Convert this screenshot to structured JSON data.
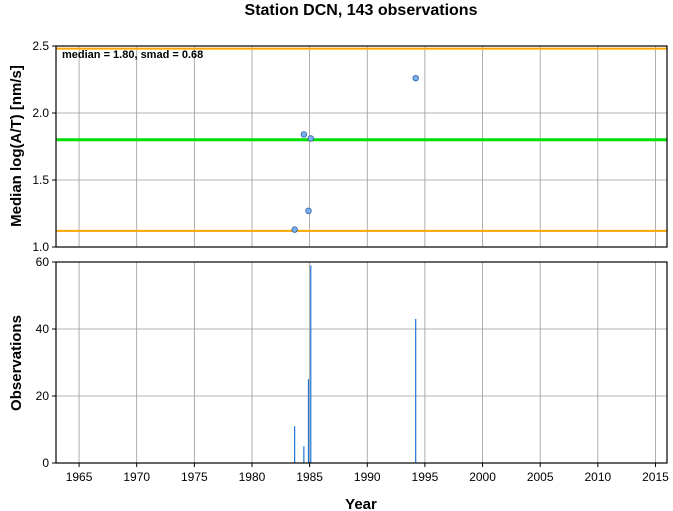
{
  "chart_data": [
    {
      "type": "scatter",
      "title": "Station DCN, 143 observations",
      "ylabel": "Median log(A/T) [nm/s]",
      "xlabel": "",
      "xlim": [
        1963,
        2016
      ],
      "ylim": [
        1.0,
        2.5
      ],
      "yticks": [
        "1.0",
        "1.5",
        "2.0",
        "2.5"
      ],
      "grid": true,
      "annotation": "median = 1.80, smad = 0.68",
      "reference_lines": [
        {
          "y": 2.48,
          "color": "#ffa500"
        },
        {
          "y": 1.8,
          "color": "#00e000"
        },
        {
          "y": 1.12,
          "color": "#ffa500"
        }
      ],
      "points": [
        {
          "x": 1983.7,
          "y": 1.13
        },
        {
          "x": 1984.5,
          "y": 1.84
        },
        {
          "x": 1984.9,
          "y": 1.27
        },
        {
          "x": 1985.1,
          "y": 1.81
        },
        {
          "x": 1994.2,
          "y": 2.26
        }
      ],
      "marker_color": "#7ab0f0"
    },
    {
      "type": "bar",
      "ylabel": "Observations",
      "xlabel": "Year",
      "xlim": [
        1963,
        2016
      ],
      "ylim": [
        0,
        60
      ],
      "yticks": [
        "0",
        "20",
        "40",
        "60"
      ],
      "xticks": [
        "1965",
        "1970",
        "1975",
        "1980",
        "1985",
        "1990",
        "1995",
        "2000",
        "2005",
        "2010",
        "2015"
      ],
      "grid": true,
      "bars": [
        {
          "x": 1983.7,
          "value": 11
        },
        {
          "x": 1984.5,
          "value": 5
        },
        {
          "x": 1984.9,
          "value": 25
        },
        {
          "x": 1985.1,
          "value": 59
        },
        {
          "x": 1994.2,
          "value": 43
        }
      ],
      "bar_color": "#1f77d4"
    }
  ]
}
